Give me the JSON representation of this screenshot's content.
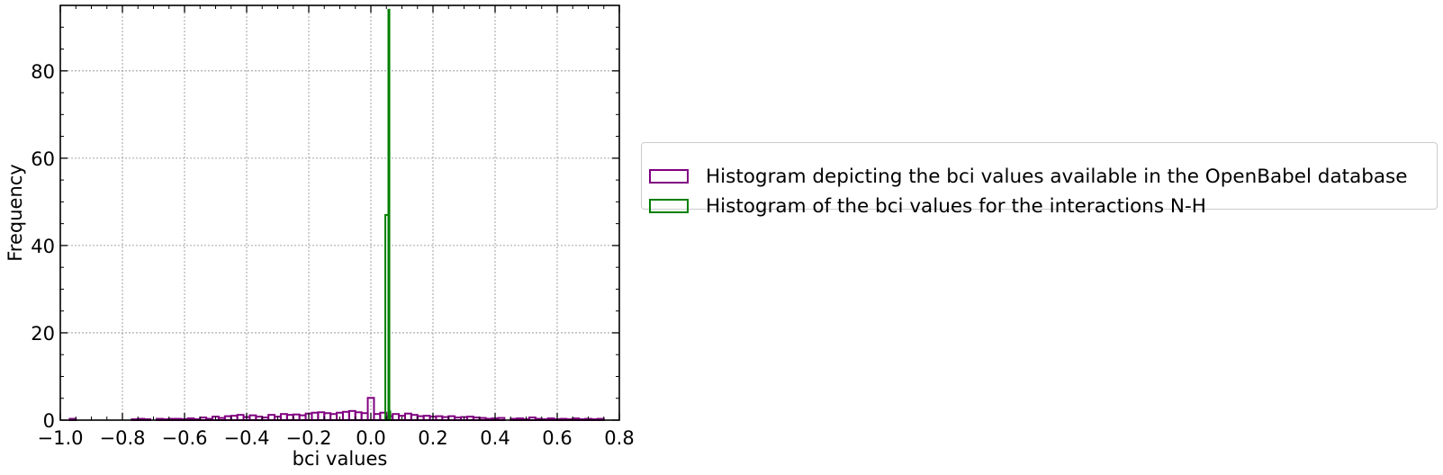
{
  "chart_data": {
    "type": "histogram",
    "xlabel": "bci values",
    "ylabel": "Frequency",
    "xlim": [
      -1.0,
      0.8
    ],
    "ylim": [
      0,
      95
    ],
    "grid": true,
    "legend_placement": "right, outside plot",
    "x_ticks": [
      "−1.0",
      "−0.8",
      "−0.6",
      "−0.4",
      "−0.2",
      "0.0",
      "0.2",
      "0.4",
      "0.6",
      "0.8"
    ],
    "y_ticks": [
      "0",
      "20",
      "40",
      "60",
      "80"
    ],
    "series": [
      {
        "name": "Histogram depicting the bci values available in the OpenBabel database",
        "style": "step",
        "color": "#800080",
        "bin_edges": [
          -0.97,
          -0.95,
          -0.93,
          -0.91,
          -0.89,
          -0.87,
          -0.85,
          -0.83,
          -0.81,
          -0.79,
          -0.77,
          -0.75,
          -0.73,
          -0.71,
          -0.69,
          -0.67,
          -0.65,
          -0.63,
          -0.61,
          -0.59,
          -0.57,
          -0.55,
          -0.53,
          -0.51,
          -0.49,
          -0.47,
          -0.45,
          -0.43,
          -0.41,
          -0.39,
          -0.37,
          -0.35,
          -0.33,
          -0.31,
          -0.29,
          -0.27,
          -0.25,
          -0.23,
          -0.21,
          -0.19,
          -0.17,
          -0.15,
          -0.13,
          -0.11,
          -0.09,
          -0.07,
          -0.05,
          -0.03,
          -0.01,
          0.01,
          0.03,
          0.05,
          0.07,
          0.09,
          0.11,
          0.13,
          0.15,
          0.17,
          0.19,
          0.21,
          0.23,
          0.25,
          0.27,
          0.29,
          0.31,
          0.33,
          0.35,
          0.37,
          0.39,
          0.41,
          0.43,
          0.45,
          0.47,
          0.49,
          0.51,
          0.53,
          0.55,
          0.57,
          0.59,
          0.61,
          0.63,
          0.65,
          0.67,
          0.69,
          0.71,
          0.73,
          0.75
        ],
        "counts": [
          0.3,
          0,
          0,
          0,
          0,
          0,
          0,
          0,
          0,
          0,
          0.2,
          0.3,
          0.2,
          0,
          0.3,
          0.2,
          0.3,
          0.3,
          0.2,
          0.4,
          0.2,
          0.6,
          0.3,
          0.8,
          0.5,
          0.9,
          1.0,
          1.2,
          0.7,
          1.1,
          0.8,
          0.6,
          1.2,
          0.8,
          1.4,
          1.2,
          1.3,
          1.1,
          1.5,
          1.7,
          1.8,
          1.6,
          1.4,
          1.7,
          1.9,
          2.1,
          1.8,
          1.6,
          5.1,
          1.4,
          1.7,
          0.9,
          1.4,
          1.0,
          1.5,
          1.2,
          0.9,
          1.0,
          0.8,
          0.9,
          0.7,
          0.9,
          0.6,
          0.7,
          0.8,
          0.6,
          0.5,
          0.3,
          0.4,
          0.5,
          0,
          0.3,
          0.4,
          0.2,
          0.6,
          0.3,
          0.2,
          0.4,
          0.2,
          0.3,
          0.2,
          0.4,
          0.2,
          0.3,
          0.2,
          0.3
        ]
      },
      {
        "name": "Histogram of the bci values for the interactions N-H",
        "style": "step",
        "color": "#007f00",
        "bin_edges": [
          0.0465,
          0.0565,
          0.0595,
          0.0615
        ],
        "counts": [
          47,
          94,
          2
        ]
      }
    ]
  }
}
